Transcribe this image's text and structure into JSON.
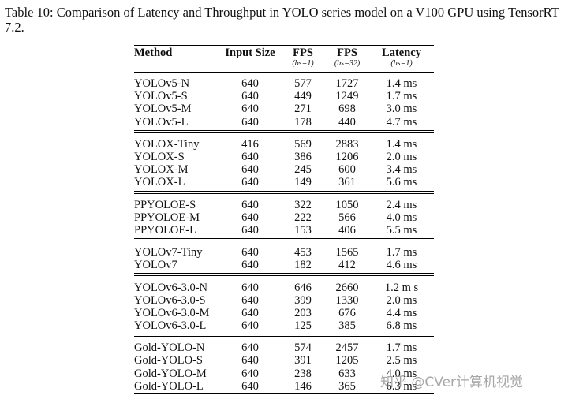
{
  "caption": "Table 10: Comparison of Latency and Throughput in YOLO series model on a V100 GPU using TensorRT 7.2.",
  "columns": {
    "method": "Method",
    "input_size": "Input Size",
    "fps_bs1": "FPS",
    "fps_bs1_sub": "(bs=1)",
    "fps_bs32": "FPS",
    "fps_bs32_sub": "(bs=32)",
    "latency": "Latency",
    "latency_sub": "(bs=1)"
  },
  "groups": [
    {
      "rows": [
        [
          "YOLOv5-N",
          "640",
          "577",
          "1727",
          "1.4 ms"
        ],
        [
          "YOLOv5-S",
          "640",
          "449",
          "1249",
          "1.7 ms"
        ],
        [
          "YOLOv5-M",
          "640",
          "271",
          "698",
          "3.0 ms"
        ],
        [
          "YOLOv5-L",
          "640",
          "178",
          "440",
          "4.7 ms"
        ]
      ]
    },
    {
      "rows": [
        [
          "YOLOX-Tiny",
          "416",
          "569",
          "2883",
          "1.4 ms"
        ],
        [
          "YOLOX-S",
          "640",
          "386",
          "1206",
          "2.0 ms"
        ],
        [
          "YOLOX-M",
          "640",
          "245",
          "600",
          "3.4 ms"
        ],
        [
          "YOLOX-L",
          "640",
          "149",
          "361",
          "5.6 ms"
        ]
      ]
    },
    {
      "rows": [
        [
          "PPYOLOE-S",
          "640",
          "322",
          "1050",
          "2.4 ms"
        ],
        [
          "PPYOLOE-M",
          "640",
          "222",
          "566",
          "4.0 ms"
        ],
        [
          "PPYOLOE-L",
          "640",
          "153",
          "406",
          "5.5 ms"
        ]
      ]
    },
    {
      "rows": [
        [
          "YOLOv7-Tiny",
          "640",
          "453",
          "1565",
          "1.7 ms"
        ],
        [
          "YOLOv7",
          "640",
          "182",
          "412",
          "4.6 ms"
        ]
      ]
    },
    {
      "rows": [
        [
          "YOLOv6-3.0-N",
          "640",
          "646",
          "2660",
          "1.2 m s"
        ],
        [
          "YOLOv6-3.0-S",
          "640",
          "399",
          "1330",
          "2.0 ms"
        ],
        [
          "YOLOv6-3.0-M",
          "640",
          "203",
          "676",
          "4.4 ms"
        ],
        [
          "YOLOv6-3.0-L",
          "640",
          "125",
          "385",
          "6.8 ms"
        ]
      ]
    },
    {
      "rows": [
        [
          "Gold-YOLO-N",
          "640",
          "574",
          "2457",
          "1.7 ms"
        ],
        [
          "Gold-YOLO-S",
          "640",
          "391",
          "1205",
          "2.5 ms"
        ],
        [
          "Gold-YOLO-M",
          "640",
          "238",
          "633",
          "4.0 ms"
        ],
        [
          "Gold-YOLO-L",
          "640",
          "146",
          "365",
          "6.3 ms"
        ]
      ]
    }
  ],
  "watermark": "知乎 @CVer计算机视觉"
}
